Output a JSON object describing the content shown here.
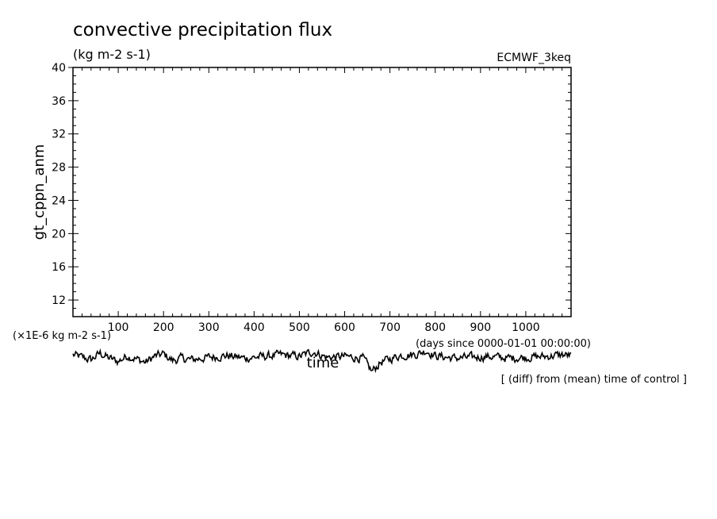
{
  "chart_data": {
    "type": "line",
    "title": "convective precipitation flux",
    "units": "(kg m-2 s-1)",
    "dataset_label": "ECMWF_3keq",
    "ylabel": "gt_cppn_anm",
    "xlabel": "time",
    "x_units": "(days since 0000-01-01 00:00:00)",
    "y_scale_note": "(×1E-6 kg m-2 s-1)",
    "footnote": "[ (diff) from (mean) time of control ]",
    "xlim": [
      0,
      1100
    ],
    "ylim": [
      10,
      40
    ],
    "x_ticks": [
      "100",
      "200",
      "300",
      "400",
      "500",
      "600",
      "700",
      "800",
      "900",
      "1000"
    ],
    "y_ticks": [
      "12",
      "16",
      "20",
      "24",
      "28",
      "32",
      "36",
      "40"
    ],
    "grid": false,
    "series": [
      {
        "values_note": "anomaly trace, approximately y = 4 to 7 (drawn below the plotted y-range)",
        "x_start": 0,
        "x_end": 1100,
        "approx_points": [
          [
            0,
            5.4
          ],
          [
            20,
            5.1
          ],
          [
            40,
            4.8
          ],
          [
            60,
            5.6
          ],
          [
            80,
            5.0
          ],
          [
            100,
            4.6
          ],
          [
            120,
            5.3
          ],
          [
            140,
            4.9
          ],
          [
            160,
            4.5
          ],
          [
            180,
            5.2
          ],
          [
            200,
            5.5
          ],
          [
            220,
            4.7
          ],
          [
            240,
            5.0
          ],
          [
            260,
            4.8
          ],
          [
            300,
            5.1
          ],
          [
            340,
            5.3
          ],
          [
            380,
            5.0
          ],
          [
            420,
            5.2
          ],
          [
            460,
            5.4
          ],
          [
            500,
            5.2
          ],
          [
            530,
            5.8
          ],
          [
            560,
            5.1
          ],
          [
            600,
            5.2
          ],
          [
            640,
            5.0
          ],
          [
            660,
            3.4
          ],
          [
            680,
            4.5
          ],
          [
            700,
            4.9
          ],
          [
            720,
            5.3
          ],
          [
            760,
            5.5
          ],
          [
            780,
            5.9
          ],
          [
            800,
            5.3
          ],
          [
            840,
            5.0
          ],
          [
            880,
            5.1
          ],
          [
            920,
            5.2
          ],
          [
            960,
            5.0
          ],
          [
            1000,
            5.1
          ],
          [
            1040,
            5.2
          ],
          [
            1080,
            5.4
          ],
          [
            1100,
            5.3
          ]
        ]
      }
    ]
  }
}
